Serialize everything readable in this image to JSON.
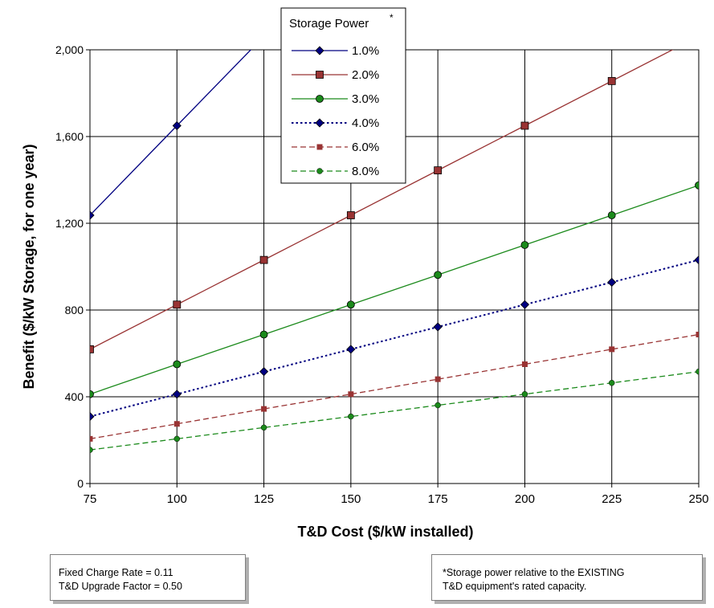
{
  "chart_data": {
    "type": "line",
    "title": "",
    "xlabel": "T&D Cost ($/kW installed)",
    "ylabel": "Benefit ($/kW Storage, for one year)",
    "x": [
      75,
      100,
      125,
      150,
      175,
      200,
      225,
      250
    ],
    "x_tick_labels": [
      "75",
      "100",
      "125",
      "150",
      "175",
      "200",
      "225",
      "250"
    ],
    "y_tick_labels": [
      "0",
      "400",
      "800",
      "1,200",
      "1,600",
      "2,000"
    ],
    "y_ticks": [
      0,
      400,
      800,
      1200,
      1600,
      2000
    ],
    "xlim": [
      75,
      250
    ],
    "ylim": [
      0,
      2000
    ],
    "grid": true,
    "legend": {
      "title": "Storage Power",
      "title_superscript": "*",
      "placement": "top-center"
    },
    "series": [
      {
        "name": "1.0%",
        "color": "#000080",
        "marker": "diamond",
        "line": "solid",
        "x": [
          75,
          100,
          122.5
        ],
        "values": [
          1237,
          1650,
          2021
        ]
      },
      {
        "name": "2.0%",
        "color": "#993333",
        "marker": "square",
        "line": "solid",
        "x": [
          75,
          100,
          125,
          150,
          175,
          200,
          225,
          245
        ],
        "values": [
          619,
          825,
          1031,
          1237,
          1444,
          1650,
          1856,
          2021
        ]
      },
      {
        "name": "3.0%",
        "color": "#1b8a1b",
        "marker": "circle",
        "line": "solid",
        "x": [
          75,
          100,
          125,
          150,
          175,
          200,
          225,
          250
        ],
        "values": [
          412,
          550,
          687,
          825,
          962,
          1100,
          1237,
          1375
        ]
      },
      {
        "name": "4.0%",
        "color": "#000080",
        "marker": "diamond",
        "line": "dotted",
        "x": [
          75,
          100,
          125,
          150,
          175,
          200,
          225,
          250
        ],
        "values": [
          309,
          412,
          516,
          619,
          722,
          825,
          928,
          1031
        ]
      },
      {
        "name": "6.0%",
        "color": "#993333",
        "marker": "square-small",
        "line": "dashed",
        "x": [
          75,
          100,
          125,
          150,
          175,
          200,
          225,
          250
        ],
        "values": [
          206,
          275,
          344,
          412,
          481,
          550,
          619,
          687
        ]
      },
      {
        "name": "8.0%",
        "color": "#1b8a1b",
        "marker": "circle-small",
        "line": "dashed",
        "x": [
          75,
          100,
          125,
          150,
          175,
          200,
          225,
          250
        ],
        "values": [
          155,
          206,
          258,
          309,
          361,
          412,
          464,
          516
        ]
      }
    ]
  },
  "notes": {
    "left": [
      "Fixed Charge Rate = 0.11",
      "T&D Upgrade Factor = 0.50"
    ],
    "right": [
      "*Storage power relative to the EXISTING",
      "T&D equipment's rated capacity."
    ]
  }
}
